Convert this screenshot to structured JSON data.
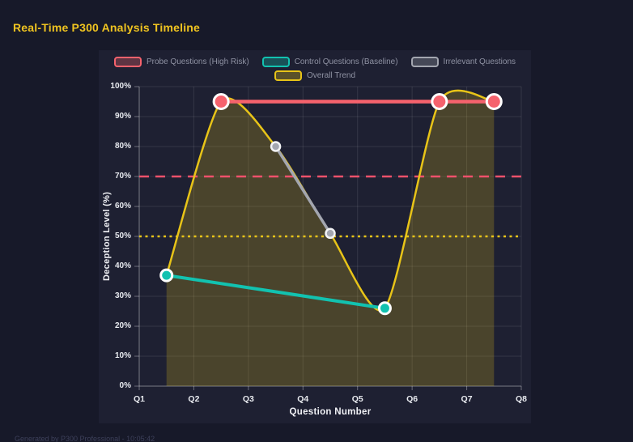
{
  "page": {
    "title": "Real-Time P300 Analysis Timeline",
    "footer": "Generated by P300 Professional - 10:05:42",
    "bg_color": "#171929",
    "panel_color": "#1e2032",
    "title_color": "#f0c420"
  },
  "chart_data": {
    "type": "line",
    "title": "Real-Time P300 Analysis Timeline",
    "xlabel": "Question Number",
    "ylabel": "Deception Level (%)",
    "xlim": [
      1,
      8
    ],
    "ylim": [
      0,
      100
    ],
    "y_tick_step": 10,
    "grid": true,
    "legend_position": "top",
    "x_ticks": [
      "Q1",
      "Q2",
      "Q3",
      "Q4",
      "Q5",
      "Q6",
      "Q7",
      "Q8"
    ],
    "y_ticks": [
      "0%",
      "10%",
      "20%",
      "30%",
      "40%",
      "50%",
      "60%",
      "70%",
      "80%",
      "90%",
      "100%"
    ],
    "series": [
      {
        "name": "Probe Questions (High Risk)",
        "color": "#f5626d",
        "type": "line",
        "x": [
          2.5,
          6.5,
          7.5
        ],
        "y": [
          95,
          95,
          95
        ],
        "line_width": 4.5,
        "marker_radius": 9,
        "marker_stroke": "#ffffff",
        "marker_stroke_width": 3
      },
      {
        "name": "Control Questions (Baseline)",
        "color": "#12c2b0",
        "type": "line",
        "x": [
          1.5,
          5.5
        ],
        "y": [
          37,
          26
        ],
        "line_width": 4,
        "marker_radius": 7,
        "marker_stroke": "#ffffff",
        "marker_stroke_width": 3
      },
      {
        "name": "Irrelevant Questions",
        "color": "#a3a6b0",
        "type": "line",
        "x": [
          3.5,
          4.5
        ],
        "y": [
          80,
          51
        ],
        "line_width": 3.5,
        "marker_radius": 5.5,
        "marker_stroke": "#f2f3f5",
        "marker_stroke_width": 2.5
      },
      {
        "name": "Overall Trend",
        "color": "#e8c418",
        "type": "spline",
        "x": [
          1.5,
          2.5,
          3.5,
          4.5,
          5.5,
          6.5,
          7.5
        ],
        "y": [
          37,
          95,
          80,
          51,
          26,
          95,
          95
        ],
        "line_width": 2.5,
        "marker_radius": 0,
        "fill": true,
        "fill_opacity": 0.22
      }
    ],
    "reference_lines": [
      {
        "y": 70,
        "color": "#f0516b",
        "style": "dashed"
      },
      {
        "y": 50,
        "color": "#e8c418",
        "style": "dotted"
      }
    ]
  }
}
